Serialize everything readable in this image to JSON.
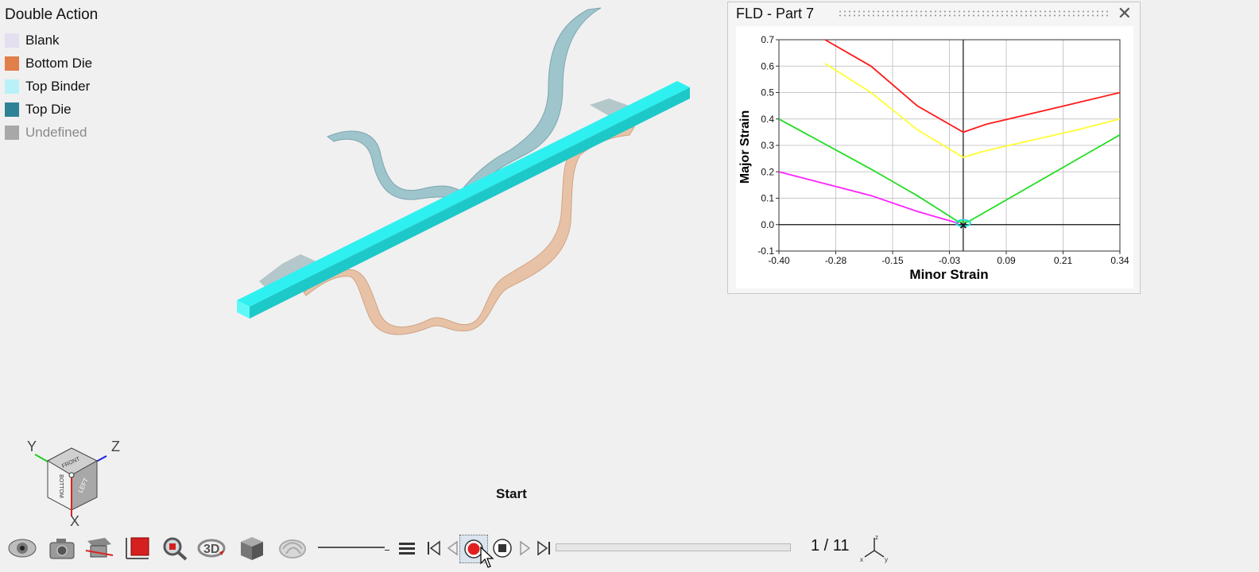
{
  "legend": {
    "title": "Double Action",
    "items": [
      {
        "label": "Blank",
        "color": "#e4dff0",
        "muted": false
      },
      {
        "label": "Bottom Die",
        "color": "#e07f4a",
        "muted": false
      },
      {
        "label": "Top Binder",
        "color": "#b8f2f8",
        "muted": false
      },
      {
        "label": "Top Die",
        "color": "#2f8296",
        "muted": false
      },
      {
        "label": "Undefined",
        "color": "#a8a8a8",
        "muted": true
      }
    ]
  },
  "fld_panel": {
    "title": "FLD - Part 7",
    "close_icon": "close-icon"
  },
  "chart_data": {
    "type": "line",
    "xlabel": "Minor Strain",
    "ylabel": "Major Strain",
    "xlim": [
      -0.4,
      0.34
    ],
    "ylim": [
      -0.1,
      0.7
    ],
    "x_ticks": [
      "-0.40",
      "-0.28",
      "-0.15",
      "-0.03",
      "0.09",
      "0.21",
      "0.34"
    ],
    "y_ticks": [
      "0.7",
      "0.6",
      "0.5",
      "0.4",
      "0.3",
      "0.2",
      "0.1",
      "0.0",
      "-0.1"
    ],
    "grid": true,
    "series": [
      {
        "color": "#ff1a1a",
        "x": [
          -0.3,
          -0.2,
          -0.1,
          0.0,
          0.05,
          0.22,
          0.34
        ],
        "y": [
          0.7,
          0.6,
          0.45,
          0.35,
          0.38,
          0.45,
          0.5
        ]
      },
      {
        "color": "#ffff33",
        "x": [
          -0.3,
          -0.2,
          -0.1,
          0.0,
          0.05,
          0.25,
          0.34
        ],
        "y": [
          0.61,
          0.5,
          0.36,
          0.255,
          0.28,
          0.36,
          0.4
        ]
      },
      {
        "color": "#22dd22",
        "x": [
          -0.4,
          -0.2,
          -0.1,
          -0.01,
          0.01,
          0.1,
          0.34
        ],
        "y": [
          0.4,
          0.21,
          0.11,
          0.01,
          0.01,
          0.1,
          0.34
        ]
      },
      {
        "color": "#ff22ff",
        "x": [
          -0.4,
          -0.2,
          -0.1,
          -0.01
        ],
        "y": [
          0.2,
          0.11,
          0.05,
          0.005
        ]
      }
    ],
    "marker": {
      "symbol": "×",
      "x": 0.0,
      "y": 0.0
    }
  },
  "viewport": {
    "start_label": "Start",
    "axes": {
      "y": "Y",
      "z": "Z",
      "x": "X"
    },
    "cube_faces": {
      "front": "FRONT",
      "left": "LEFT",
      "bottom": "BOTTOM"
    }
  },
  "toolbar": {
    "frame_counter": "1 / 11",
    "icons": [
      "eye-icon",
      "camera-icon",
      "section-icon",
      "shade-icon",
      "zoom-icon",
      "rotate-3d-icon",
      "solid-box-icon",
      "mesh-icon",
      "menu-icon",
      "first-frame-icon",
      "prev-frame-icon",
      "record-icon",
      "stop-icon",
      "next-frame-icon",
      "last-frame-icon",
      "triad-icon"
    ],
    "triad_labels": {
      "z": "z",
      "x": "x",
      "y": "y"
    }
  }
}
